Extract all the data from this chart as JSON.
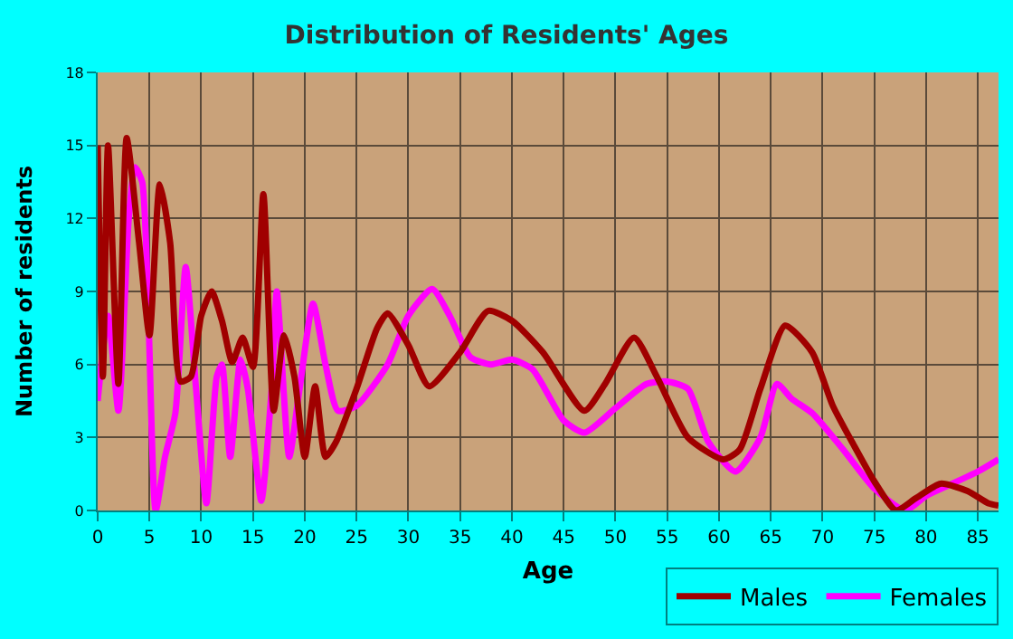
{
  "chart_data": {
    "type": "line",
    "title": "Distribution of Residents' Ages",
    "xlabel": "Age",
    "ylabel": "Number of residents",
    "xlim": [
      0,
      87
    ],
    "xticks": [
      0,
      5,
      10,
      15,
      20,
      25,
      30,
      35,
      40,
      45,
      50,
      55,
      60,
      65,
      70,
      75,
      80,
      85
    ],
    "ylim": [
      0,
      18
    ],
    "yticks": [
      0,
      3,
      6,
      9,
      12,
      15,
      18
    ],
    "grid": true,
    "legend": "bottom right",
    "marker": "none",
    "line_style": "solid",
    "series": [
      {
        "name": "Males",
        "color": "#a00000",
        "x": [
          0,
          0.5,
          1,
          2,
          2.8,
          4,
          5,
          6,
          7,
          8,
          9,
          10,
          11,
          12,
          13,
          14,
          15,
          16,
          17,
          18,
          19,
          20,
          21,
          22,
          23,
          25,
          27,
          28,
          30,
          32,
          35,
          37.7,
          40,
          43,
          47,
          49,
          51.8,
          54,
          57,
          60.4,
          62,
          64,
          66.4,
          69,
          71,
          73,
          75,
          77.1,
          79,
          81.4,
          84,
          86,
          87
        ],
        "values": [
          15,
          5.5,
          15,
          5.2,
          15.3,
          11,
          7.2,
          13.4,
          11,
          5.3,
          5.5,
          8,
          9,
          7.8,
          6.1,
          7.1,
          5.9,
          13,
          4.1,
          7.2,
          5.5,
          2.2,
          5.1,
          2.2,
          2.8,
          5,
          7.5,
          8.1,
          6.8,
          5.1,
          6.5,
          8.2,
          7.8,
          6.5,
          4.1,
          5.2,
          7.1,
          5.5,
          3,
          2.1,
          2.5,
          5,
          7.6,
          6.5,
          4.3,
          2.7,
          1.2,
          0,
          0.5,
          1.1,
          0.8,
          0.3,
          0.2
        ]
      },
      {
        "name": "Females",
        "color": "#ff00ff",
        "x": [
          0,
          1,
          2,
          3,
          3.6,
          4.3,
          5.6,
          6.5,
          7.5,
          8.5,
          9.5,
          10.5,
          11.5,
          12,
          12.8,
          13.8,
          14.5,
          15.8,
          16.8,
          17.3,
          18.5,
          19.5,
          20.8,
          22,
          23.2,
          25,
          28,
          30,
          32.3,
          34,
          36,
          38,
          40,
          42,
          45,
          47,
          50,
          53,
          55,
          57,
          59,
          61.6,
          64,
          65.6,
          67,
          69,
          72,
          75,
          78,
          80,
          82,
          85,
          87
        ],
        "values": [
          4.5,
          8,
          4.1,
          12,
          14.1,
          13.5,
          0,
          2.2,
          4,
          10,
          5,
          0.3,
          5.5,
          6,
          2.2,
          6.2,
          5,
          0.4,
          5,
          9,
          2.2,
          5,
          8.5,
          6,
          4.1,
          4.3,
          6,
          8,
          9.1,
          8,
          6.3,
          6,
          6.2,
          5.8,
          3.7,
          3.2,
          4.2,
          5.2,
          5.3,
          5,
          2.8,
          1.6,
          3,
          5.2,
          4.6,
          4,
          2.5,
          0.9,
          0,
          0.6,
          1,
          1.6,
          2.1
        ]
      }
    ]
  }
}
